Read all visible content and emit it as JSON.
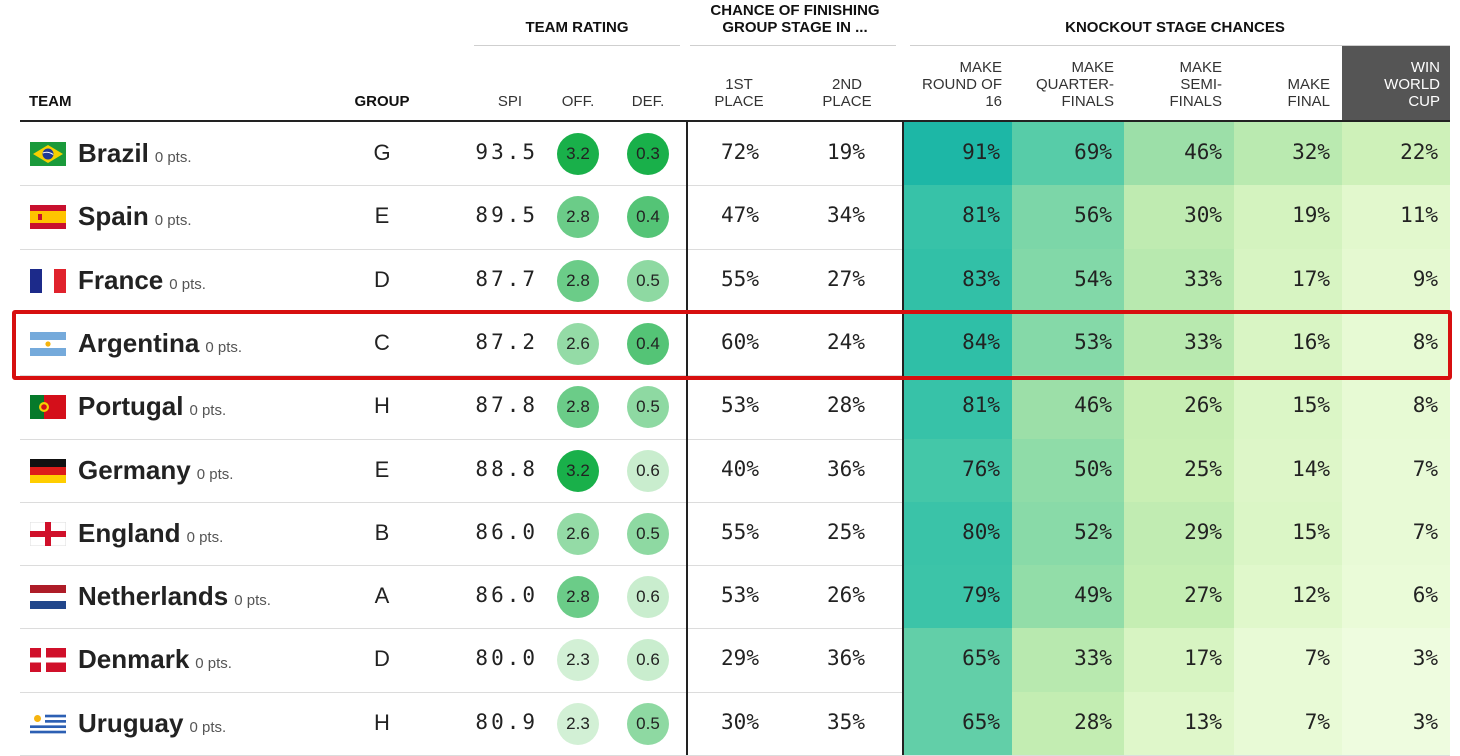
{
  "headers": {
    "team_rating": "TEAM RATING",
    "chance_group_line1": "CHANCE OF FINISHING",
    "chance_group_line2": "GROUP STAGE IN ...",
    "knockout": "KNOCKOUT STAGE CHANCES",
    "team": "TEAM",
    "group": "GROUP",
    "spi": "SPI",
    "off": "OFF.",
    "def": "DEF.",
    "first_1": "1ST",
    "first_2": "PLACE",
    "second_1": "2ND",
    "second_2": "PLACE",
    "r16_1": "MAKE",
    "r16_2": "ROUND OF",
    "r16_3": "16",
    "qf_1": "MAKE",
    "qf_2": "QUARTER-",
    "qf_3": "FINALS",
    "sf_1": "MAKE",
    "sf_2": "SEMI-",
    "sf_3": "FINALS",
    "fin_1": "MAKE",
    "fin_2": "FINAL",
    "win_1": "WIN",
    "win_2": "WORLD",
    "win_3": "CUP"
  },
  "highlighted_team": "Argentina",
  "teams": [
    {
      "name": "Brazil",
      "pts": "0 pts.",
      "group": "G",
      "spi": "93.5",
      "off": "3.2",
      "def": "0.3",
      "first": "72%",
      "second": "19%",
      "r16": "91%",
      "qf": "69%",
      "sf": "46%",
      "final": "32%",
      "win": "22%",
      "flag": "brazil"
    },
    {
      "name": "Spain",
      "pts": "0 pts.",
      "group": "E",
      "spi": "89.5",
      "off": "2.8",
      "def": "0.4",
      "first": "47%",
      "second": "34%",
      "r16": "81%",
      "qf": "56%",
      "sf": "30%",
      "final": "19%",
      "win": "11%",
      "flag": "spain"
    },
    {
      "name": "France",
      "pts": "0 pts.",
      "group": "D",
      "spi": "87.7",
      "off": "2.8",
      "def": "0.5",
      "first": "55%",
      "second": "27%",
      "r16": "83%",
      "qf": "54%",
      "sf": "33%",
      "final": "17%",
      "win": "9%",
      "flag": "france"
    },
    {
      "name": "Argentina",
      "pts": "0 pts.",
      "group": "C",
      "spi": "87.2",
      "off": "2.6",
      "def": "0.4",
      "first": "60%",
      "second": "24%",
      "r16": "84%",
      "qf": "53%",
      "sf": "33%",
      "final": "16%",
      "win": "8%",
      "flag": "argentina"
    },
    {
      "name": "Portugal",
      "pts": "0 pts.",
      "group": "H",
      "spi": "87.8",
      "off": "2.8",
      "def": "0.5",
      "first": "53%",
      "second": "28%",
      "r16": "81%",
      "qf": "46%",
      "sf": "26%",
      "final": "15%",
      "win": "8%",
      "flag": "portugal"
    },
    {
      "name": "Germany",
      "pts": "0 pts.",
      "group": "E",
      "spi": "88.8",
      "off": "3.2",
      "def": "0.6",
      "first": "40%",
      "second": "36%",
      "r16": "76%",
      "qf": "50%",
      "sf": "25%",
      "final": "14%",
      "win": "7%",
      "flag": "germany"
    },
    {
      "name": "England",
      "pts": "0 pts.",
      "group": "B",
      "spi": "86.0",
      "off": "2.6",
      "def": "0.5",
      "first": "55%",
      "second": "25%",
      "r16": "80%",
      "qf": "52%",
      "sf": "29%",
      "final": "15%",
      "win": "7%",
      "flag": "england"
    },
    {
      "name": "Netherlands",
      "pts": "0 pts.",
      "group": "A",
      "spi": "86.0",
      "off": "2.8",
      "def": "0.6",
      "first": "53%",
      "second": "26%",
      "r16": "79%",
      "qf": "49%",
      "sf": "27%",
      "final": "12%",
      "win": "6%",
      "flag": "netherlands"
    },
    {
      "name": "Denmark",
      "pts": "0 pts.",
      "group": "D",
      "spi": "80.0",
      "off": "2.3",
      "def": "0.6",
      "first": "29%",
      "second": "36%",
      "r16": "65%",
      "qf": "33%",
      "sf": "17%",
      "final": "7%",
      "win": "3%",
      "flag": "denmark"
    },
    {
      "name": "Uruguay",
      "pts": "0 pts.",
      "group": "H",
      "spi": "80.9",
      "off": "2.3",
      "def": "0.5",
      "first": "30%",
      "second": "35%",
      "r16": "65%",
      "qf": "28%",
      "sf": "13%",
      "final": "7%",
      "win": "3%",
      "flag": "uruguay"
    }
  ]
}
